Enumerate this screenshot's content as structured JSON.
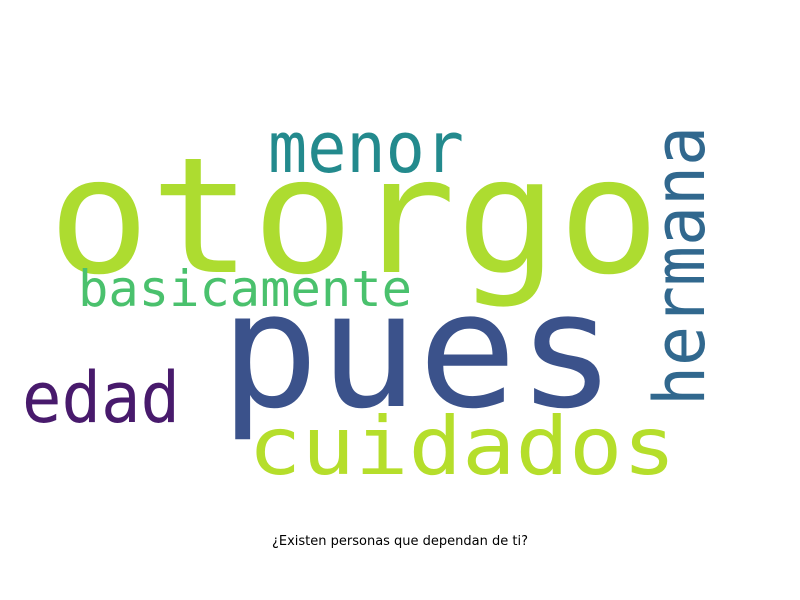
{
  "caption": "¿Existen personas que dependan de ti?",
  "words": [
    {
      "text": "otorgo",
      "weight": 1.0,
      "color": "#addc30",
      "orientation": "horizontal"
    },
    {
      "text": "pues",
      "weight": 0.95,
      "color": "#3b528b",
      "orientation": "horizontal"
    },
    {
      "text": "cuidados",
      "weight": 0.55,
      "color": "#b5de2b",
      "orientation": "horizontal"
    },
    {
      "text": "hermana",
      "weight": 0.45,
      "color": "#31688e",
      "orientation": "vertical"
    },
    {
      "text": "menor",
      "weight": 0.5,
      "color": "#238a8d",
      "orientation": "horizontal"
    },
    {
      "text": "basicamente",
      "weight": 0.4,
      "color": "#4ac16d",
      "orientation": "horizontal"
    },
    {
      "text": "edad",
      "weight": 0.5,
      "color": "#481a6c",
      "orientation": "horizontal"
    }
  ]
}
